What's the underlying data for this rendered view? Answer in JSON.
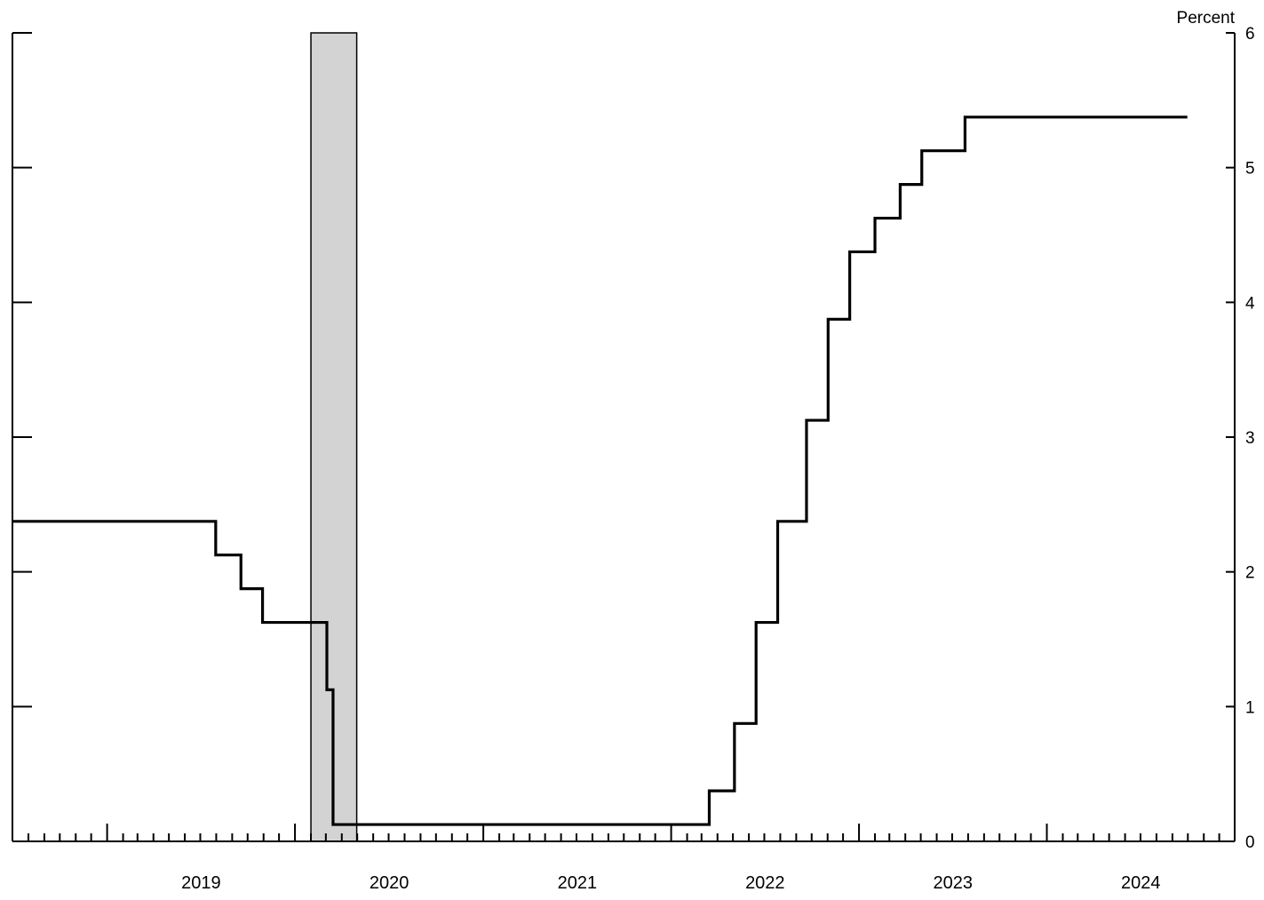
{
  "chart_data": {
    "type": "line",
    "title": "",
    "xlabel": "",
    "ylabel": "Percent",
    "ylim": [
      0,
      6
    ],
    "yticks": [
      "0",
      "1",
      "2",
      "3",
      "4",
      "5",
      "6"
    ],
    "xlim": [
      "2018-07-01",
      "2024-12-31"
    ],
    "x_year_labels": [
      "2019",
      "2020",
      "2021",
      "2022",
      "2023",
      "2024"
    ],
    "grid": false,
    "legend": "none",
    "step": true,
    "line_color": "#000000",
    "shaded_regions": [
      {
        "start": "2020-02-01",
        "end": "2020-04-30",
        "color": "#d3d3d3"
      }
    ],
    "series": [
      {
        "x": [
          "2018-07-01",
          "2019-07-31",
          "2019-09-18",
          "2019-10-30",
          "2020-03-03",
          "2020-03-15",
          "2021-12-31",
          "2022-03-16",
          "2022-05-04",
          "2022-06-15",
          "2022-07-27",
          "2022-09-21",
          "2022-11-02",
          "2022-12-14",
          "2023-02-01",
          "2023-03-22",
          "2023-05-03",
          "2023-07-26",
          "2024-09-30"
        ],
        "y": [
          2.375,
          2.125,
          1.875,
          1.625,
          1.125,
          0.125,
          0.125,
          0.375,
          0.875,
          1.625,
          2.375,
          3.125,
          3.875,
          4.375,
          4.625,
          4.875,
          5.125,
          5.375,
          5.375
        ]
      }
    ]
  }
}
